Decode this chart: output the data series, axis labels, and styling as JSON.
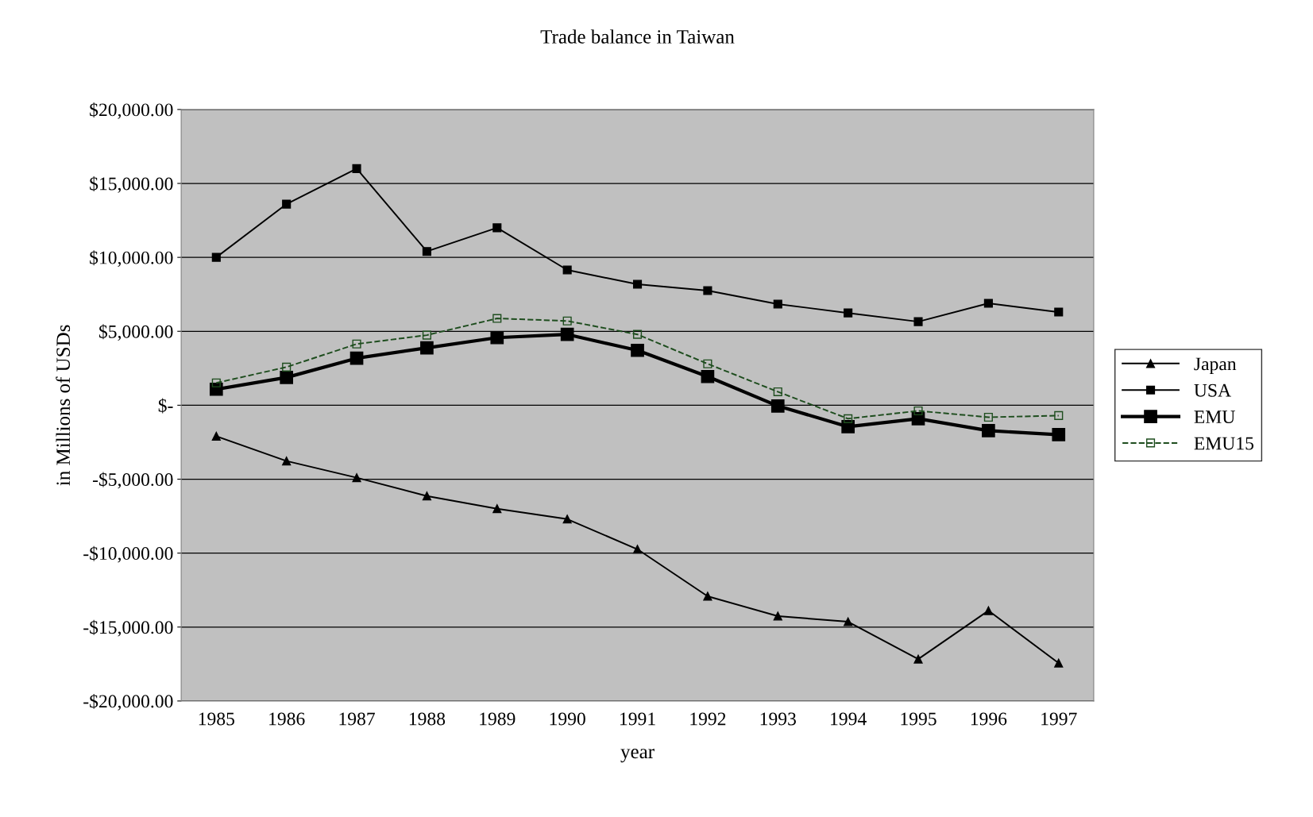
{
  "chart_data": {
    "type": "line",
    "title": "Trade balance in Taiwan",
    "xlabel": "year",
    "ylabel": "in Millions of USDs",
    "categories": [
      "1985",
      "1986",
      "1987",
      "1988",
      "1989",
      "1990",
      "1991",
      "1992",
      "1993",
      "1994",
      "1995",
      "1996",
      "1997"
    ],
    "series": [
      {
        "name": "Japan",
        "color": "#000000",
        "marker": "triangle",
        "line_style": "solid",
        "values": [
          -2100,
          -3770,
          -4900,
          -6140,
          -7000,
          -7700,
          -9740,
          -12920,
          -14260,
          -14640,
          -17170,
          -13890,
          -17440
        ]
      },
      {
        "name": "USA",
        "color": "#000000",
        "marker": "square",
        "line_style": "solid",
        "values": [
          10000,
          13600,
          16000,
          10400,
          12000,
          9150,
          8180,
          7750,
          6840,
          6240,
          5650,
          6890,
          6300
        ]
      },
      {
        "name": "EMU",
        "color": "#000000",
        "marker": "square",
        "line_style": "solid",
        "values": [
          1080,
          1880,
          3180,
          3880,
          4570,
          4790,
          3710,
          1940,
          -50,
          -1450,
          -910,
          -1720,
          -1990
        ]
      },
      {
        "name": "EMU15",
        "color": "#1e4d1e",
        "marker": "square",
        "line_style": "dashed",
        "values": [
          1510,
          2580,
          4140,
          4740,
          5870,
          5700,
          4790,
          2800,
          910,
          -910,
          -380,
          -810,
          -700
        ]
      }
    ],
    "ylim": [
      -20000,
      20000
    ],
    "yticks": [
      {
        "value": -20000,
        "label": "-$20,000.00"
      },
      {
        "value": -15000,
        "label": "-$15,000.00"
      },
      {
        "value": -10000,
        "label": "-$10,000.00"
      },
      {
        "value": -5000,
        "label": "-$5,000.00"
      },
      {
        "value": 0,
        "label": "$-"
      },
      {
        "value": 5000,
        "label": "$5,000.00"
      },
      {
        "value": 10000,
        "label": "$10,000.00"
      },
      {
        "value": 15000,
        "label": "$15,000.00"
      },
      {
        "value": 20000,
        "label": "$20,000.00"
      }
    ],
    "grid": "y",
    "legend": "right"
  }
}
